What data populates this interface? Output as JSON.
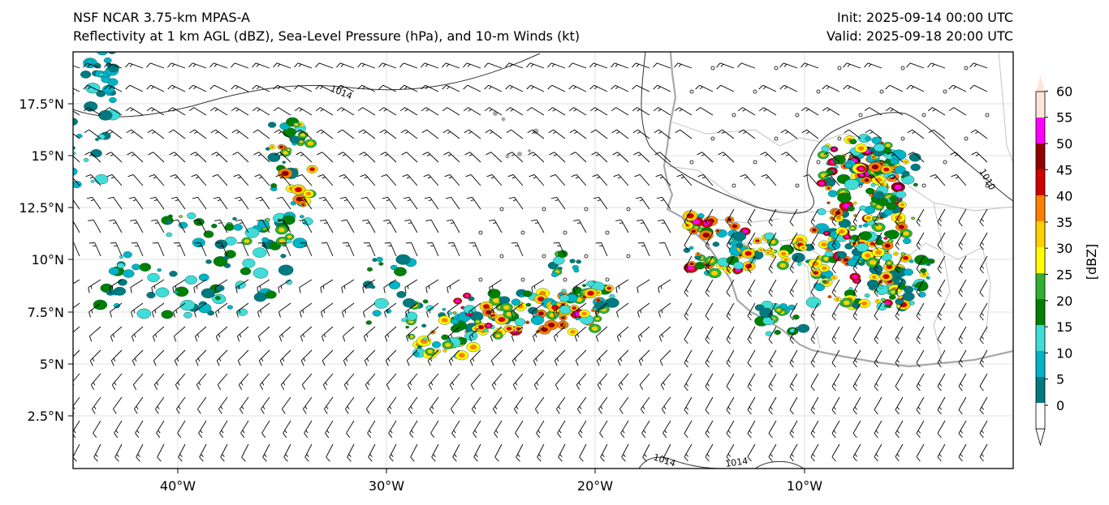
{
  "header": {
    "title_line1": "NSF NCAR 3.75-km MPAS-A",
    "title_line2": "Reflectivity at 1 km AGL (dBZ), Sea-Level Pressure (hPa), and 10-m Winds (kt)",
    "init": "Init: 2025-09-14 00:00 UTC",
    "valid": "Valid: 2025-09-18 20:00 UTC"
  },
  "axes": {
    "lat_ticks": [
      "17.5°N",
      "15°N",
      "12.5°N",
      "10°N",
      "7.5°N",
      "5°N",
      "2.5°N"
    ],
    "lon_ticks": [
      "40°W",
      "30°W",
      "20°W",
      "10°W"
    ]
  },
  "isobar_labels": [
    "1014",
    "1010",
    "1014",
    "1014"
  ],
  "colorbar": {
    "label": "[dBZ]",
    "ticks": [
      "0",
      "5",
      "10",
      "15",
      "20",
      "25",
      "30",
      "35",
      "40",
      "45",
      "50",
      "55",
      "60"
    ],
    "colors": [
      "#ffffff",
      "#007a80",
      "#00b4c8",
      "#40dcd8",
      "#008000",
      "#30b030",
      "#ffff00",
      "#ffd000",
      "#ff8000",
      "#d00000",
      "#900000",
      "#ff00ff",
      "#ffe4d8"
    ]
  }
}
